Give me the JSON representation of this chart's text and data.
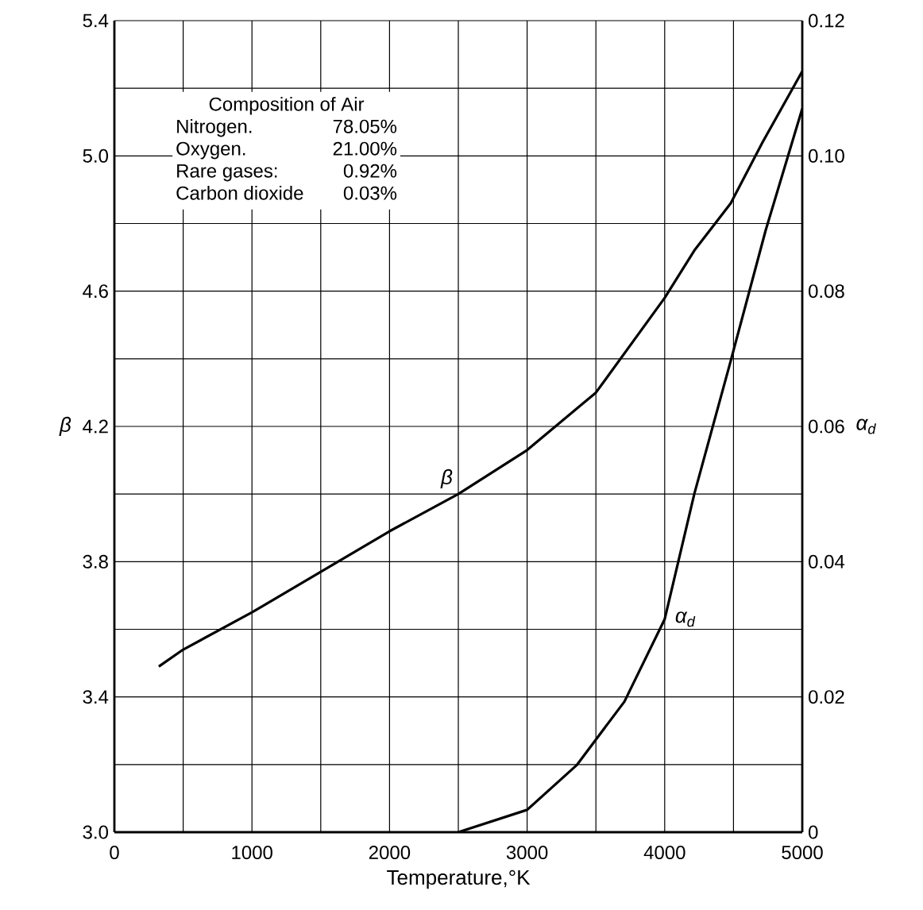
{
  "chart_data": {
    "type": "line",
    "xlabel": "Temperature,°K",
    "ylabel": "β",
    "y2label": "α$_{d}$",
    "annotations": [
      "Composition of Air",
      "Nitrogen.",
      "78.05%",
      "Oxygen.",
      "21.00%",
      "Rare gases:",
      "0.92%",
      "Carbon dioxide",
      "0.03%"
    ],
    "series": [
      {
        "name": "β",
        "color": "#000000",
        "x": [
          323,
          500,
          1000,
          1500,
          2000,
          2500,
          3000,
          3500,
          4000,
          4215,
          4480,
          4711,
          5000
        ],
        "values": [
          3.49,
          3.54,
          3.65,
          3.77,
          3.89,
          4.0,
          4.13,
          4.3,
          4.58,
          4.72,
          4.86,
          5.04,
          5.25
        ]
      },
      {
        "name": "α$_{d}$",
        "color": "#000000",
        "axis": "y2",
        "x": [
          2500,
          3000,
          3360,
          3707,
          4000,
          4215,
          4480,
          4734,
          5000
        ],
        "values": [
          0,
          0.0033,
          0.0099,
          0.0193,
          0.0315,
          0.05,
          0.0697,
          0.089,
          0.107
        ]
      }
    ],
    "xlim": [
      0,
      5000
    ],
    "ylim": [
      3.0,
      5.4
    ],
    "y2lim": [
      0,
      0.12
    ],
    "xticks": [
      0,
      {
        "value": 500,
        "label": null
      },
      1000,
      {
        "value": 1500,
        "label": null
      },
      2000,
      {
        "value": 2500,
        "label": null
      },
      3000,
      {
        "value": 3500,
        "label": null
      },
      4000,
      {
        "value": 4500,
        "label": null
      },
      5000
    ],
    "yticks": [
      {
        "value": 3.0,
        "label": "3.0"
      },
      {
        "value": 3.2,
        "label": null
      },
      3.4,
      {
        "value": 3.6,
        "label": null
      },
      3.8,
      {
        "value": 4.0,
        "label": null
      },
      4.2,
      {
        "value": 4.4,
        "label": null
      },
      4.6,
      {
        "value": 4.8,
        "label": null
      },
      {
        "value": 5.0,
        "label": "5.0"
      },
      {
        "value": 5.2,
        "label": null
      },
      5.4
    ],
    "y2ticks": [
      0,
      {
        "value": 0.01,
        "label": null
      },
      0.02,
      {
        "value": 0.03,
        "label": null
      },
      0.04,
      {
        "value": 0.05,
        "label": null
      },
      0.06,
      {
        "value": 0.07,
        "label": null
      },
      0.08,
      {
        "value": 0.09,
        "label": null
      },
      {
        "value": 0.1,
        "label": "0.10"
      },
      {
        "value": 0.11,
        "label": null
      },
      0.12
    ],
    "grid": true,
    "marker": "none",
    "line_style": "solid"
  }
}
